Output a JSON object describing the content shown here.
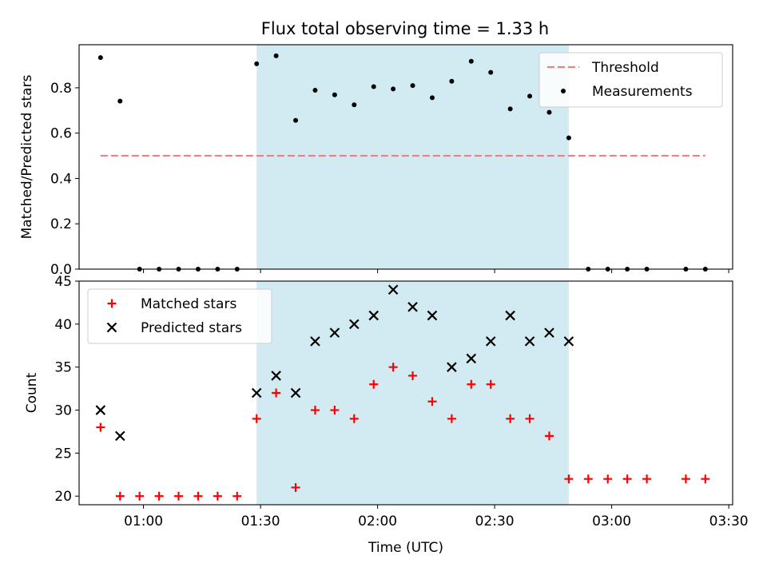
{
  "title": "Flux total observing time = 1.33 h",
  "chart_data": [
    {
      "type": "scatter",
      "ylabel": "Matched/Predicted stars",
      "xlabel": "",
      "xlim": [
        "00:43:30",
        "03:31:00"
      ],
      "ylim": [
        0,
        0.99
      ],
      "yticks": [
        0.0,
        0.2,
        0.4,
        0.6,
        0.8
      ],
      "ytick_labels": [
        "0.0",
        "0.2",
        "0.4",
        "0.6",
        "0.8"
      ],
      "grid": false,
      "shaded_span": {
        "start": "01:29:00",
        "end": "02:49:00",
        "color": "#add8e6"
      },
      "threshold": {
        "name": "Threshold",
        "value": 0.5,
        "x_start": "00:49:00",
        "x_end": "03:24:00",
        "color": "#f08080",
        "style": "dashed"
      },
      "legend": {
        "position": "top-right",
        "entries": [
          "Threshold",
          "Measurements"
        ]
      },
      "series": [
        {
          "name": "Measurements",
          "marker": "dot",
          "color": "#000000",
          "points": [
            [
              "00:49",
              0.933
            ],
            [
              "00:54",
              0.741
            ],
            [
              "00:59",
              0.0
            ],
            [
              "01:04",
              0.0
            ],
            [
              "01:09",
              0.0
            ],
            [
              "01:14",
              0.0
            ],
            [
              "01:19",
              0.0
            ],
            [
              "01:24",
              0.0
            ],
            [
              "01:29",
              0.906
            ],
            [
              "01:34",
              0.941
            ],
            [
              "01:39",
              0.656
            ],
            [
              "01:44",
              0.789
            ],
            [
              "01:49",
              0.769
            ],
            [
              "01:54",
              0.725
            ],
            [
              "01:59",
              0.805
            ],
            [
              "02:04",
              0.795
            ],
            [
              "02:09",
              0.81
            ],
            [
              "02:14",
              0.756
            ],
            [
              "02:19",
              0.829
            ],
            [
              "02:24",
              0.917
            ],
            [
              "02:29",
              0.868
            ],
            [
              "02:34",
              0.707
            ],
            [
              "02:39",
              0.763
            ],
            [
              "02:44",
              0.692
            ],
            [
              "02:49",
              0.579
            ],
            [
              "02:54",
              0.0
            ],
            [
              "02:59",
              0.0
            ],
            [
              "03:04",
              0.0
            ],
            [
              "03:09",
              0.0
            ],
            [
              "03:19",
              0.0
            ],
            [
              "03:24",
              0.0
            ]
          ]
        }
      ]
    },
    {
      "type": "scatter",
      "ylabel": "Count",
      "xlabel": "Time (UTC)",
      "xlim": [
        "00:43:30",
        "03:31:00"
      ],
      "ylim": [
        19,
        45
      ],
      "yticks": [
        20,
        25,
        30,
        35,
        40,
        45
      ],
      "ytick_labels": [
        "20",
        "25",
        "30",
        "35",
        "40",
        "45"
      ],
      "xticks": [
        "01:00",
        "01:30",
        "02:00",
        "02:30",
        "03:00",
        "03:30"
      ],
      "xtick_labels": [
        "01:00",
        "01:30",
        "02:00",
        "02:30",
        "03:00",
        "03:30"
      ],
      "grid": false,
      "shaded_span": {
        "start": "01:29:00",
        "end": "02:49:00",
        "color": "#add8e6"
      },
      "legend": {
        "position": "top-left",
        "entries": [
          "Matched stars",
          "Predicted stars"
        ]
      },
      "series": [
        {
          "name": "Matched stars",
          "marker": "plus",
          "color": "#ff0000",
          "points": [
            [
              "00:49",
              28
            ],
            [
              "00:54",
              20
            ],
            [
              "00:59",
              20
            ],
            [
              "01:04",
              20
            ],
            [
              "01:09",
              20
            ],
            [
              "01:14",
              20
            ],
            [
              "01:19",
              20
            ],
            [
              "01:24",
              20
            ],
            [
              "01:29",
              29
            ],
            [
              "01:34",
              32
            ],
            [
              "01:39",
              21
            ],
            [
              "01:44",
              30
            ],
            [
              "01:49",
              30
            ],
            [
              "01:54",
              29
            ],
            [
              "01:59",
              33
            ],
            [
              "02:04",
              35
            ],
            [
              "02:09",
              34
            ],
            [
              "02:14",
              31
            ],
            [
              "02:19",
              29
            ],
            [
              "02:24",
              33
            ],
            [
              "02:29",
              33
            ],
            [
              "02:34",
              29
            ],
            [
              "02:39",
              29
            ],
            [
              "02:44",
              27
            ],
            [
              "02:49",
              22
            ],
            [
              "02:54",
              22
            ],
            [
              "02:59",
              22
            ],
            [
              "03:04",
              22
            ],
            [
              "03:09",
              22
            ],
            [
              "03:19",
              22
            ],
            [
              "03:24",
              22
            ]
          ]
        },
        {
          "name": "Predicted stars",
          "marker": "x",
          "color": "#000000",
          "points": [
            [
              "00:49",
              30
            ],
            [
              "00:54",
              27
            ],
            [
              "01:29",
              32
            ],
            [
              "01:34",
              34
            ],
            [
              "01:39",
              32
            ],
            [
              "01:44",
              38
            ],
            [
              "01:49",
              39
            ],
            [
              "01:54",
              40
            ],
            [
              "01:59",
              41
            ],
            [
              "02:04",
              44
            ],
            [
              "02:09",
              42
            ],
            [
              "02:14",
              41
            ],
            [
              "02:19",
              35
            ],
            [
              "02:24",
              36
            ],
            [
              "02:29",
              38
            ],
            [
              "02:34",
              41
            ],
            [
              "02:39",
              38
            ],
            [
              "02:44",
              39
            ],
            [
              "02:49",
              38
            ]
          ]
        }
      ]
    }
  ]
}
